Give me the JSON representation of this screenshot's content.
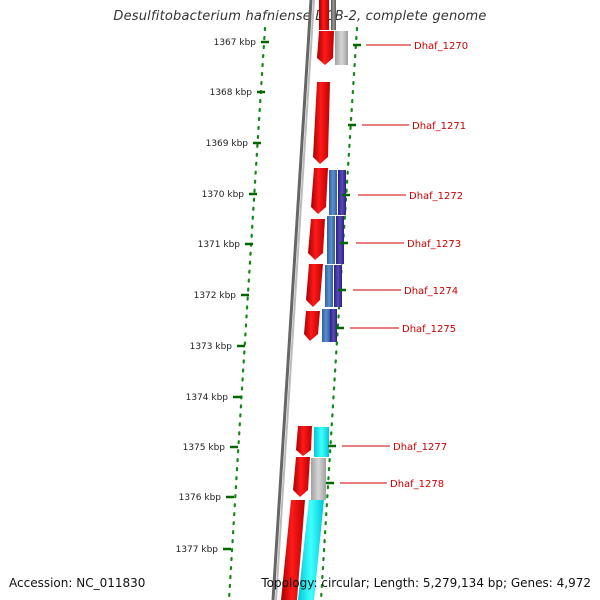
{
  "title": "Desulfitobacterium hafniense DCB-2, complete genome",
  "footer": {
    "accession": "Accession: NC_011830",
    "summary": "Topology: circular; Length: 5,279,134 bp; Genes: 4,972"
  },
  "ticks": [
    {
      "label": "1367 kbp"
    },
    {
      "label": "1368 kbp"
    },
    {
      "label": "1369 kbp"
    },
    {
      "label": "1370 kbp"
    },
    {
      "label": "1371 kbp"
    },
    {
      "label": "1372 kbp"
    },
    {
      "label": "1373 kbp"
    },
    {
      "label": "1374 kbp"
    },
    {
      "label": "1375 kbp"
    },
    {
      "label": "1376 kbp"
    },
    {
      "label": "1377 kbp"
    }
  ],
  "genes": [
    {
      "name": "Dhaf_1270"
    },
    {
      "name": "Dhaf_1271"
    },
    {
      "name": "Dhaf_1272"
    },
    {
      "name": "Dhaf_1273"
    },
    {
      "name": "Dhaf_1274"
    },
    {
      "name": "Dhaf_1275"
    },
    {
      "name": "Dhaf_1277"
    },
    {
      "name": "Dhaf_1278"
    }
  ],
  "colors": {
    "cds": "#ff0000",
    "gene_label": "#cc0000",
    "backbone": "#777777",
    "tick": "#006600",
    "ring_blue": "#4477bb",
    "ring_purple": "#443399",
    "ring_cyan": "#00e8f0",
    "ring_gray": "#b8b8b8"
  }
}
